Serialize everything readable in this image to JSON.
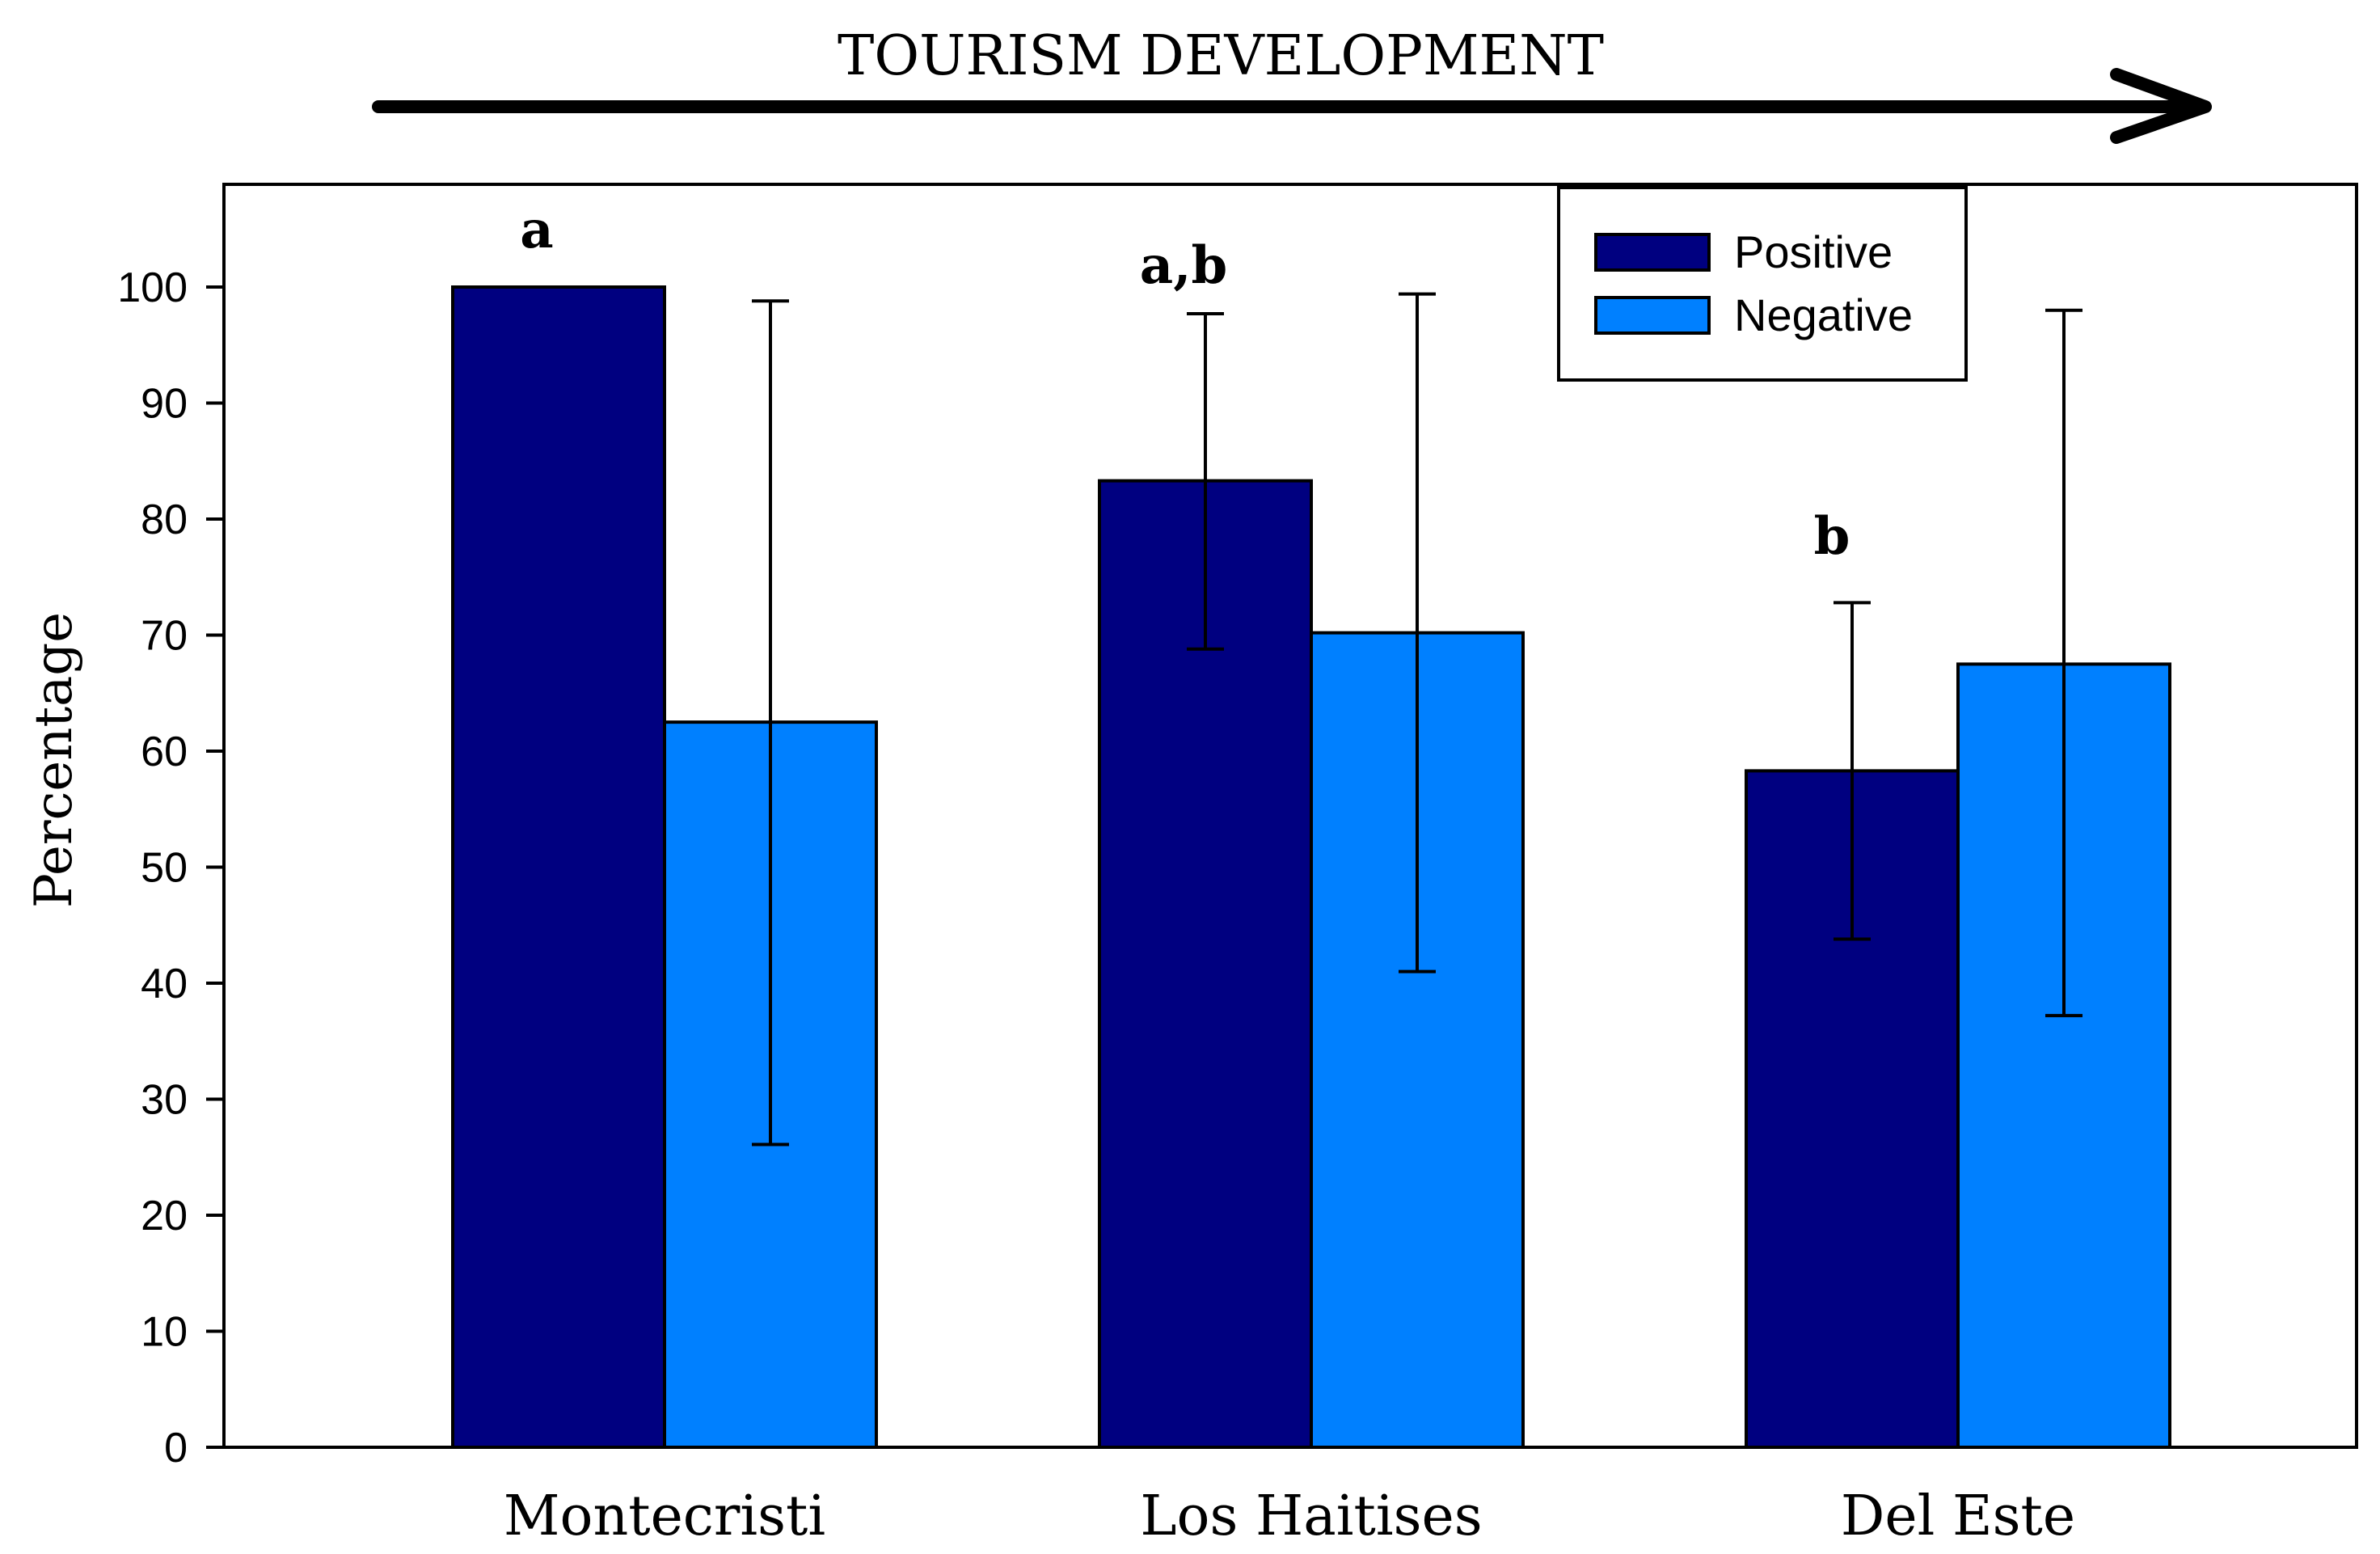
{
  "chart_data": {
    "type": "bar",
    "title": "TOURISM DEVELOPMENT",
    "xlabel": "",
    "ylabel": "Percentage",
    "ylim": [
      0,
      110
    ],
    "yticks": [
      0,
      10,
      20,
      30,
      40,
      50,
      60,
      70,
      80,
      90,
      100
    ],
    "categories": [
      "Montecristi",
      "Los Haitises",
      "Del Este"
    ],
    "series": [
      {
        "name": "Positive",
        "color": "#000080",
        "values": [
          100,
          83.3,
          58.3
        ],
        "error_low": [
          null,
          68.8,
          43.8
        ],
        "error_high": [
          null,
          97.7,
          72.8
        ]
      },
      {
        "name": "Negative",
        "color": "#0080FF",
        "values": [
          62.5,
          70.2,
          67.5
        ],
        "error_low": [
          26.1,
          41.0,
          37.2
        ],
        "error_high": [
          98.8,
          99.4,
          98.0
        ]
      }
    ],
    "annotations": [
      "a",
      "a,b",
      "b"
    ],
    "legend_position": "top-right",
    "grid": false
  }
}
